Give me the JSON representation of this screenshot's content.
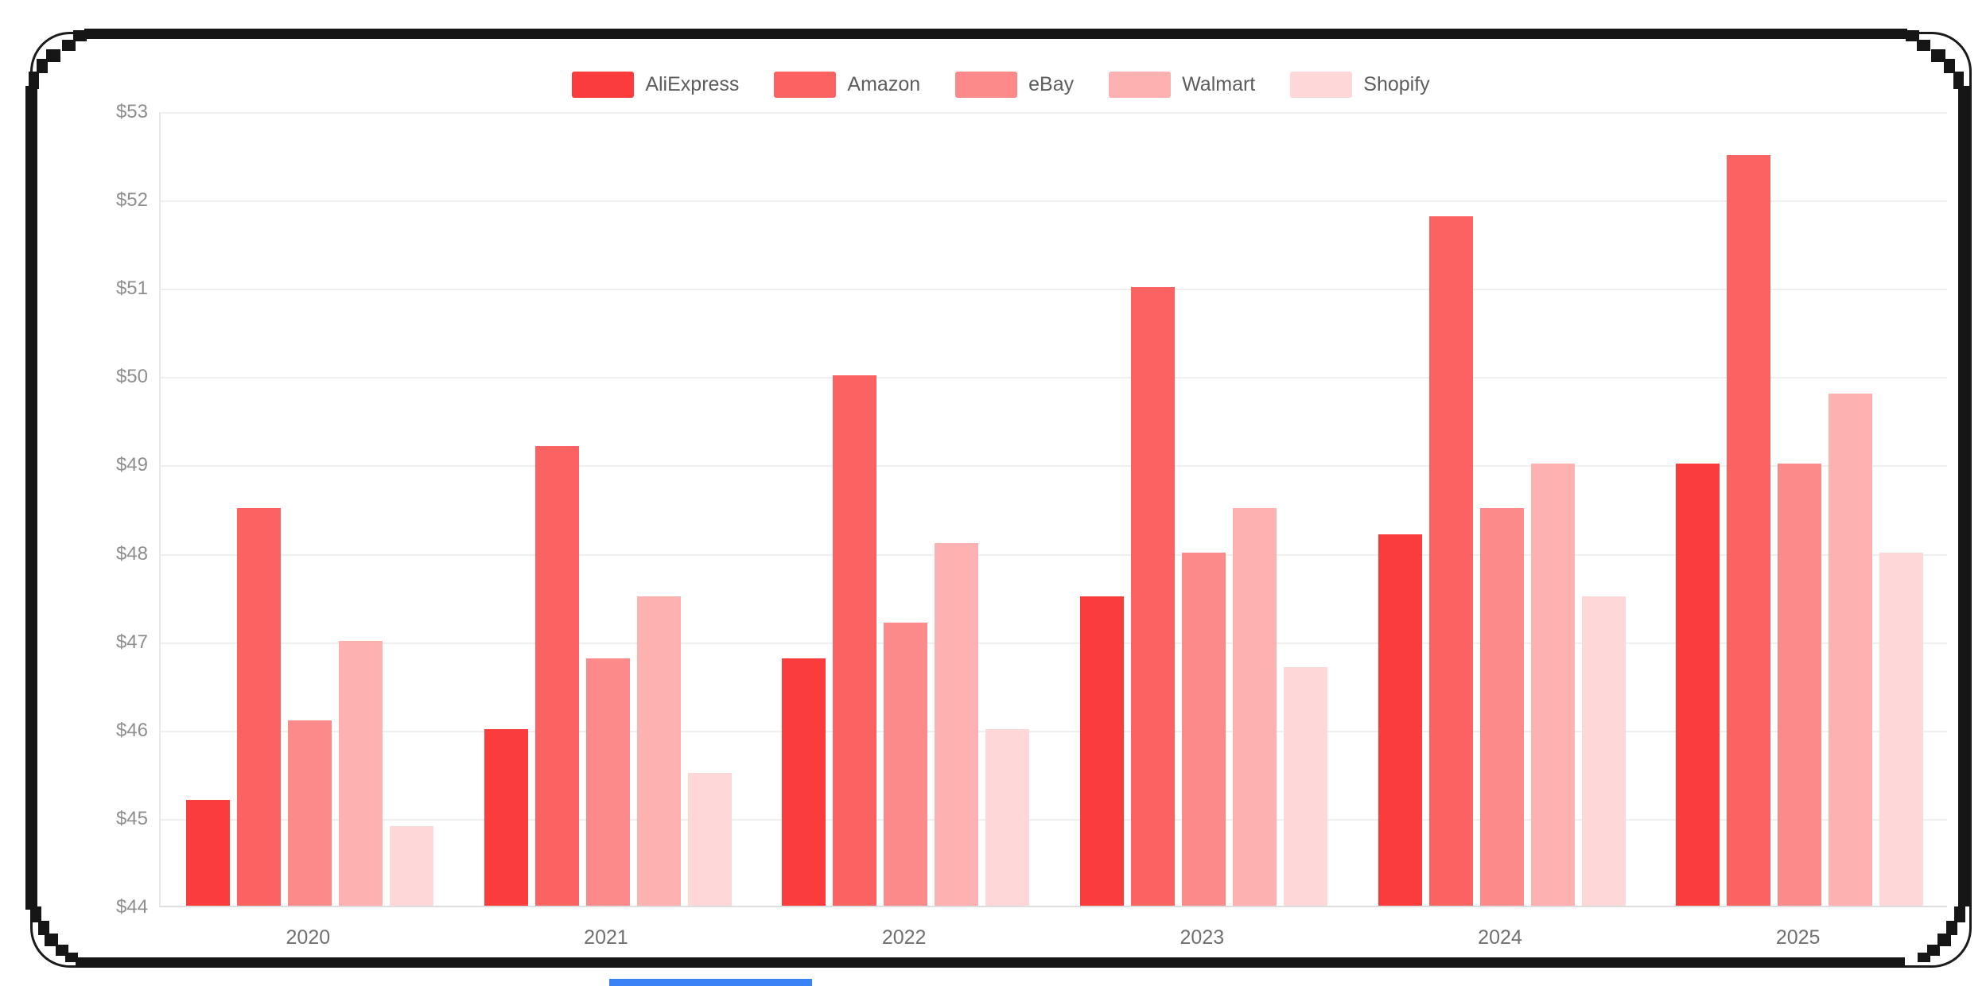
{
  "page": {
    "background": "#ffffff",
    "frame_color": "#161616",
    "bottom_accent_color": "#3b82f6"
  },
  "chart_data": {
    "type": "bar",
    "title": "",
    "categories": [
      "2020",
      "2021",
      "2022",
      "2023",
      "2024",
      "2025"
    ],
    "series": [
      {
        "name": "AliExpress",
        "color": "#fa3c3c",
        "values": [
          45.2,
          46.0,
          46.8,
          47.5,
          48.2,
          49.0
        ]
      },
      {
        "name": "Amazon",
        "color": "#fb6363",
        "values": [
          48.5,
          49.2,
          50.0,
          51.0,
          51.8,
          52.5
        ]
      },
      {
        "name": "eBay",
        "color": "#fc8a8a",
        "values": [
          46.1,
          46.8,
          47.2,
          48.0,
          48.5,
          49.0
        ]
      },
      {
        "name": "Walmart",
        "color": "#fdb1b1",
        "values": [
          47.0,
          47.5,
          48.1,
          48.5,
          49.0,
          49.8
        ]
      },
      {
        "name": "Shopify",
        "color": "#fed8d8",
        "values": [
          44.9,
          45.5,
          46.0,
          46.7,
          47.5,
          48.0
        ]
      }
    ],
    "ylim": [
      44,
      53
    ],
    "y_ticks": [
      "$44",
      "$45",
      "$46",
      "$47",
      "$48",
      "$49",
      "$50",
      "$51",
      "$52",
      "$53"
    ],
    "grid": true,
    "legend_position": "top",
    "axis_colors": {
      "grid": "#efefef",
      "axis_line": "#dedede",
      "y_label": "#8e8e8e",
      "x_label": "#707070"
    }
  }
}
